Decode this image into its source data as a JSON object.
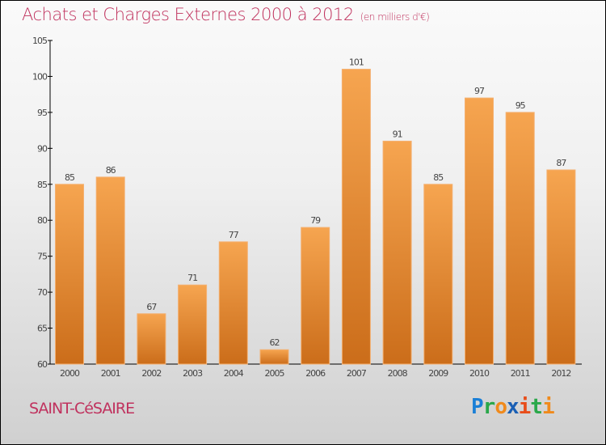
{
  "chart_data": {
    "type": "bar",
    "title": "Achats et Charges Externes 2000 à 2012",
    "subtitle": "(en milliers d'€)",
    "categories": [
      "2000",
      "2001",
      "2002",
      "2003",
      "2004",
      "2005",
      "2006",
      "2007",
      "2008",
      "2009",
      "2010",
      "2011",
      "2012"
    ],
    "values": [
      85,
      86,
      67,
      71,
      77,
      62,
      79,
      101,
      91,
      85,
      97,
      95,
      87
    ],
    "ylim": [
      60,
      105
    ],
    "yticks": [
      60,
      65,
      70,
      75,
      80,
      85,
      90,
      95,
      100,
      105
    ],
    "xlabel": "",
    "ylabel": "",
    "bar_color": "#e8892f"
  },
  "footer": {
    "city": "SAINT-CéSAIRE",
    "logo": "Proxiti",
    "logo_letters": [
      {
        "t": "P",
        "c": "#1a7fd6"
      },
      {
        "t": "r",
        "c": "#2aa84a"
      },
      {
        "t": "o",
        "c": "#f08a1c"
      },
      {
        "t": "x",
        "c": "#1a5fb4"
      },
      {
        "t": "i",
        "c": "#e84d1a"
      },
      {
        "t": "t",
        "c": "#2aa84a"
      },
      {
        "t": "i",
        "c": "#f08a1c"
      }
    ]
  }
}
